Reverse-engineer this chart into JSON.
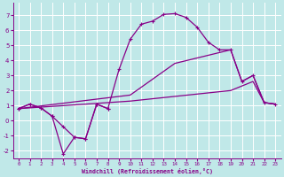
{
  "xlabel": "Windchill (Refroidissement éolien,°C)",
  "background_color": "#c0e8e8",
  "grid_color": "#aadddd",
  "line_color": "#880088",
  "xlim": [
    -0.5,
    23.5
  ],
  "ylim": [
    -2.5,
    7.8
  ],
  "xticks": [
    0,
    1,
    2,
    3,
    4,
    5,
    6,
    7,
    8,
    9,
    10,
    11,
    12,
    13,
    14,
    15,
    16,
    17,
    18,
    19,
    20,
    21,
    22,
    23
  ],
  "yticks": [
    -2,
    -1,
    0,
    1,
    2,
    3,
    4,
    5,
    6,
    7
  ],
  "line_zigzag_x": [
    0,
    1,
    2,
    3,
    4,
    5,
    6,
    7,
    8
  ],
  "line_zigzag_y": [
    0.8,
    1.1,
    0.85,
    0.3,
    -2.2,
    -1.1,
    -1.2,
    1.1,
    0.8
  ],
  "line_big_x": [
    0,
    1,
    2,
    3,
    4,
    5,
    6,
    7,
    8,
    9,
    10,
    11,
    12,
    13,
    14,
    15,
    16,
    17,
    18,
    19,
    20,
    21,
    22,
    23
  ],
  "line_big_y": [
    0.8,
    1.1,
    0.85,
    0.3,
    -0.4,
    -1.1,
    -1.2,
    1.1,
    0.8,
    3.4,
    5.4,
    6.4,
    6.6,
    7.05,
    7.1,
    6.85,
    6.2,
    5.2,
    4.7,
    4.7,
    2.6,
    3.0,
    1.2,
    1.1
  ],
  "line_diag_x": [
    0,
    10,
    19,
    21,
    22,
    23
  ],
  "line_diag_y": [
    0.8,
    1.3,
    2.0,
    2.6,
    1.2,
    1.1
  ],
  "line_mid_x": [
    0,
    10,
    14,
    19,
    20,
    21,
    22,
    23
  ],
  "line_mid_y": [
    0.8,
    1.7,
    3.8,
    4.7,
    2.6,
    3.0,
    1.2,
    1.1
  ]
}
